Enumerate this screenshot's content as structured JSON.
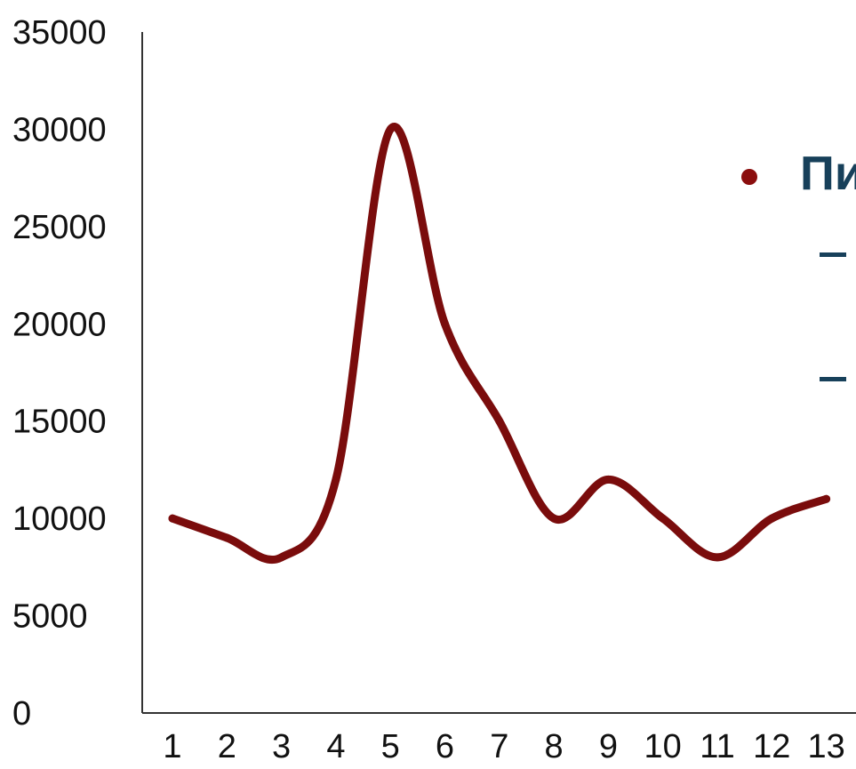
{
  "chart_data": {
    "type": "line",
    "x": [
      1,
      2,
      3,
      4,
      5,
      6,
      7,
      8,
      9,
      10,
      11,
      12,
      13
    ],
    "categories": [
      "1",
      "2",
      "3",
      "4",
      "5",
      "6",
      "7",
      "8",
      "9",
      "10",
      "11",
      "12",
      "13"
    ],
    "series": [
      {
        "values": [
          10000,
          9000,
          8000,
          12000,
          30000,
          20000,
          15000,
          10000,
          12000,
          10000,
          8000,
          10000,
          11000
        ]
      }
    ],
    "yticks": [
      "0",
      "5000",
      "10000",
      "15000",
      "20000",
      "25000",
      "30000",
      "35000"
    ],
    "ylim": [
      0,
      35000
    ],
    "grid": false,
    "line_color": "#7a0c0c",
    "title": "",
    "xlabel": "",
    "ylabel": ""
  },
  "side_text": {
    "bullet_text": "Пи",
    "bullet_color": "#8b0e0e",
    "dash_color": "#17405a"
  }
}
